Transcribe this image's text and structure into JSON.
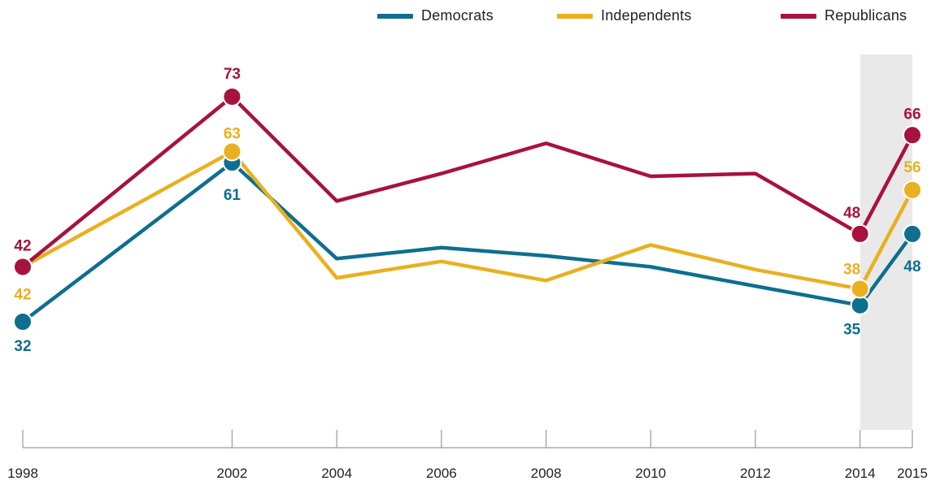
{
  "chart_data": {
    "type": "line",
    "x": [
      1998,
      2002,
      2004,
      2006,
      2008,
      2010,
      2012,
      2014,
      2015
    ],
    "tick_labels": [
      "1998",
      "2002",
      "2004",
      "2006",
      "2008",
      "2010",
      "2012",
      "2014",
      "2015"
    ],
    "series": [
      {
        "name": "Democrats",
        "color": "#0e6f8e",
        "values": [
          32,
          61,
          43.5,
          45.5,
          44,
          42,
          38.5,
          35,
          48
        ],
        "labels": {
          "1998": "32",
          "2002": "61",
          "2014": "35",
          "2015": "48"
        }
      },
      {
        "name": "Independents",
        "color": "#e9b01f",
        "values": [
          42,
          63,
          40,
          43,
          39.5,
          46,
          41.5,
          38,
          56
        ],
        "labels": {
          "1998": "42",
          "2002": "63",
          "2014": "38",
          "2015": "56"
        }
      },
      {
        "name": "Republicans",
        "color": "#a8123e",
        "values": [
          42,
          73,
          54,
          59,
          64.5,
          58.5,
          59,
          48,
          66
        ],
        "labels": {
          "1998": "42",
          "2002": "73",
          "2014": "48",
          "2015": "66"
        }
      }
    ],
    "highlight_range": [
      2014,
      2015
    ],
    "grid": false,
    "legend_position": "top-right",
    "title": "",
    "xlabel": "",
    "ylabel": ""
  }
}
